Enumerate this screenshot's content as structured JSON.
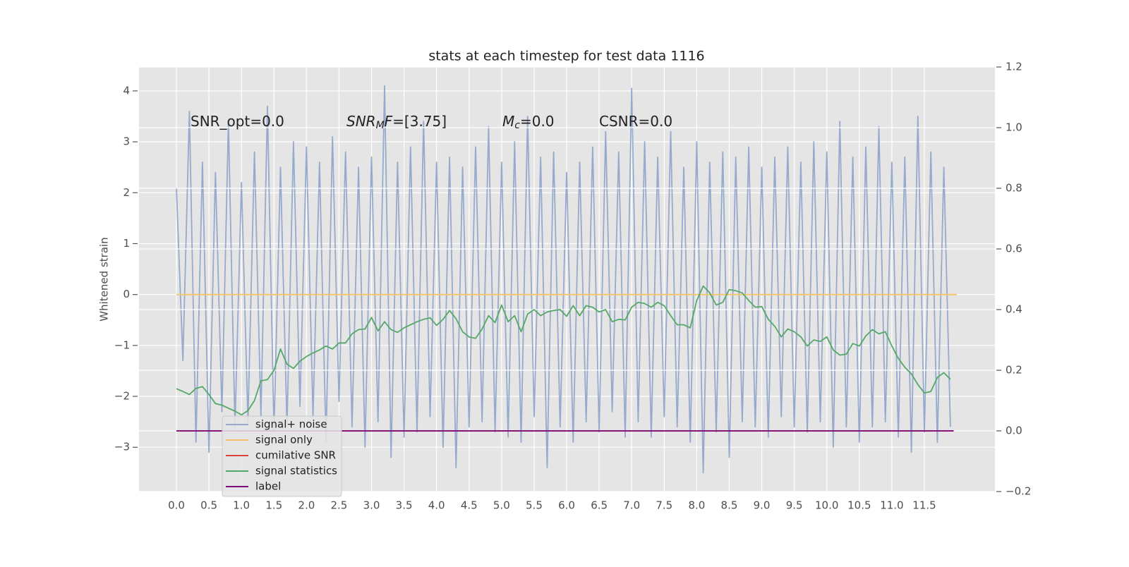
{
  "chart_data": {
    "type": "line",
    "title": "stats at each timestep for test data 1116",
    "ylabel": "Whitened strain",
    "xlim": [
      -0.575,
      12.585
    ],
    "ylim": [
      -3.87,
      4.47
    ],
    "y2lim": [
      -0.2,
      1.2
    ],
    "grid": true,
    "xticks": [
      {
        "value": 0,
        "label": "0.0"
      },
      0.5,
      {
        "value": 1,
        "label": "1.0"
      },
      1.5,
      {
        "value": 2,
        "label": "2.0"
      },
      2.5,
      {
        "value": 3,
        "label": "3.0"
      },
      3.5,
      {
        "value": 4,
        "label": "4.0"
      },
      4.5,
      {
        "value": 5,
        "label": "5.0"
      },
      5.5,
      {
        "value": 6,
        "label": "6.0"
      },
      6.5,
      {
        "value": 7,
        "label": "7.0"
      },
      7.5,
      {
        "value": 8,
        "label": "8.0"
      },
      8.5,
      {
        "value": 9,
        "label": "9.0"
      },
      9.5,
      {
        "value": 10,
        "label": "10.0"
      },
      10.5,
      {
        "value": 11,
        "label": "11.0"
      },
      11.5
    ],
    "yticks": [
      {
        "value": -3,
        "label": "−3"
      },
      {
        "value": -2,
        "label": "−2"
      },
      {
        "value": -1,
        "label": "−1"
      },
      0,
      1,
      2,
      3,
      4
    ],
    "y2ticks": [
      {
        "value": -0.2,
        "label": "−0.2"
      },
      {
        "value": 0,
        "label": "0.0"
      },
      0.2,
      0.4,
      0.6,
      0.8,
      {
        "value": 1,
        "label": "1.0"
      },
      1.2
    ],
    "annotations": [
      [
        {
          "text": "SNR_opt=0.0"
        }
      ],
      [
        {
          "text": "SNR",
          "style": "italic"
        },
        {
          "text": "M",
          "style": "italic-sub"
        },
        {
          "text": "F",
          "style": "italic"
        },
        {
          "text": "=[3.75]"
        }
      ],
      [
        {
          "text": "M",
          "style": "italic"
        },
        {
          "text": "c",
          "style": "italic-sub"
        },
        {
          "text": "=0.0"
        }
      ],
      [
        {
          "text": "CSNR=0.0"
        }
      ]
    ],
    "x": [
      0.0,
      0.1,
      0.2,
      0.3,
      0.4,
      0.5,
      0.6,
      0.7,
      0.8,
      0.9,
      1.0,
      1.1,
      1.2,
      1.3,
      1.4,
      1.5,
      1.6,
      1.7,
      1.8,
      1.9,
      2.0,
      2.1,
      2.2,
      2.3,
      2.4,
      2.5,
      2.6,
      2.7,
      2.8,
      2.9,
      3.0,
      3.1,
      3.2,
      3.3,
      3.4,
      3.5,
      3.6,
      3.7,
      3.8,
      3.9,
      4.0,
      4.1,
      4.2,
      4.3,
      4.4,
      4.5,
      4.6,
      4.7,
      4.8,
      4.9,
      5.0,
      5.1,
      5.2,
      5.3,
      5.4,
      5.5,
      5.6,
      5.7,
      5.8,
      5.9,
      6.0,
      6.1,
      6.2,
      6.3,
      6.4,
      6.5,
      6.6,
      6.7,
      6.8,
      6.9,
      7.0,
      7.1,
      7.2,
      7.3,
      7.4,
      7.5,
      7.6,
      7.7,
      7.8,
      7.9,
      8.0,
      8.1,
      8.2,
      8.3,
      8.4,
      8.5,
      8.6,
      8.7,
      8.8,
      8.9,
      9.0,
      9.1,
      9.2,
      9.3,
      9.4,
      9.5,
      9.6,
      9.7,
      9.8,
      9.9,
      10.0,
      10.1,
      10.2,
      10.3,
      10.4,
      10.5,
      10.6,
      10.7,
      10.8,
      10.9,
      11.0,
      11.1,
      11.2,
      11.3,
      11.4,
      11.5,
      11.6,
      11.7,
      11.8,
      11.9
    ],
    "series": [
      {
        "name": "signal+ noise",
        "color": "#97a9cd",
        "axis": "y",
        "values": [
          2.1,
          -1.3,
          3.6,
          -2.9,
          2.6,
          -3.1,
          2.4,
          -2.3,
          3.4,
          -2.6,
          2.2,
          -2.5,
          2.8,
          -2.4,
          3.7,
          -2.7,
          2.5,
          -2.6,
          3.0,
          -2.2,
          2.9,
          -2.4,
          2.6,
          -2.9,
          3.1,
          -2.1,
          2.8,
          -2.6,
          2.5,
          -3.0,
          2.7,
          -2.5,
          4.1,
          -3.2,
          2.6,
          -2.8,
          2.9,
          -2.7,
          3.4,
          -2.4,
          2.6,
          -3.0,
          2.7,
          -3.4,
          2.5,
          -2.6,
          2.9,
          -2.5,
          3.3,
          -2.7,
          2.6,
          -2.8,
          3.0,
          -2.9,
          3.5,
          -2.4,
          2.7,
          -3.4,
          2.8,
          -2.6,
          2.4,
          -2.9,
          2.6,
          -2.5,
          2.9,
          -2.7,
          3.2,
          -2.3,
          2.8,
          -2.8,
          4.05,
          -2.5,
          3.0,
          -2.8,
          2.7,
          -2.4,
          3.2,
          -2.6,
          2.5,
          -2.9,
          3.0,
          -3.5,
          2.6,
          -2.7,
          2.8,
          -3.2,
          2.7,
          -2.5,
          2.9,
          -2.6,
          2.5,
          -2.8,
          2.7,
          -2.4,
          2.9,
          -2.6,
          2.6,
          -2.7,
          3.0,
          -2.5,
          2.8,
          -3.0,
          3.4,
          -2.6,
          2.7,
          -2.9,
          2.9,
          -2.6,
          3.3,
          -2.5,
          2.6,
          -2.8,
          2.7,
          -3.1,
          3.5,
          -2.7,
          2.8,
          -2.9,
          2.5,
          -2.6
        ]
      },
      {
        "name": "signal only",
        "color": "#f5c56a",
        "axis": "y",
        "x": [
          0.0,
          12.0
        ],
        "values": [
          0,
          0
        ]
      },
      {
        "name": "cumilative SNR",
        "color": "#d9453b",
        "axis": "y2",
        "x": [
          0.0,
          11.95
        ],
        "values": [
          0,
          0
        ]
      },
      {
        "name": "signal statistics",
        "color": "#55a868",
        "axis": "y2",
        "values": [
          0.139,
          0.13,
          0.12,
          0.14,
          0.146,
          0.12,
          0.09,
          0.085,
          0.075,
          0.065,
          0.053,
          0.067,
          0.1,
          0.165,
          0.169,
          0.2,
          0.27,
          0.22,
          0.206,
          0.23,
          0.245,
          0.257,
          0.267,
          0.28,
          0.27,
          0.29,
          0.29,
          0.32,
          0.334,
          0.336,
          0.374,
          0.33,
          0.36,
          0.334,
          0.325,
          0.34,
          0.35,
          0.36,
          0.368,
          0.373,
          0.348,
          0.368,
          0.397,
          0.37,
          0.327,
          0.31,
          0.305,
          0.336,
          0.38,
          0.357,
          0.415,
          0.36,
          0.38,
          0.327,
          0.385,
          0.4,
          0.38,
          0.392,
          0.397,
          0.4,
          0.378,
          0.413,
          0.38,
          0.413,
          0.408,
          0.392,
          0.4,
          0.36,
          0.368,
          0.366,
          0.408,
          0.424,
          0.42,
          0.408,
          0.424,
          0.413,
          0.38,
          0.35,
          0.35,
          0.34,
          0.43,
          0.478,
          0.455,
          0.415,
          0.424,
          0.466,
          0.462,
          0.455,
          0.43,
          0.408,
          0.41,
          0.368,
          0.345,
          0.31,
          0.336,
          0.327,
          0.31,
          0.28,
          0.3,
          0.295,
          0.31,
          0.267,
          0.25,
          0.253,
          0.288,
          0.28,
          0.313,
          0.334,
          0.32,
          0.327,
          0.28,
          0.239,
          0.21,
          0.188,
          0.153,
          0.125,
          0.13,
          0.176,
          0.192,
          0.17
        ]
      },
      {
        "name": "label",
        "color": "#7b0a7b",
        "axis": "y2",
        "x": [
          0.0,
          11.95
        ],
        "values": [
          0,
          0
        ]
      }
    ]
  }
}
